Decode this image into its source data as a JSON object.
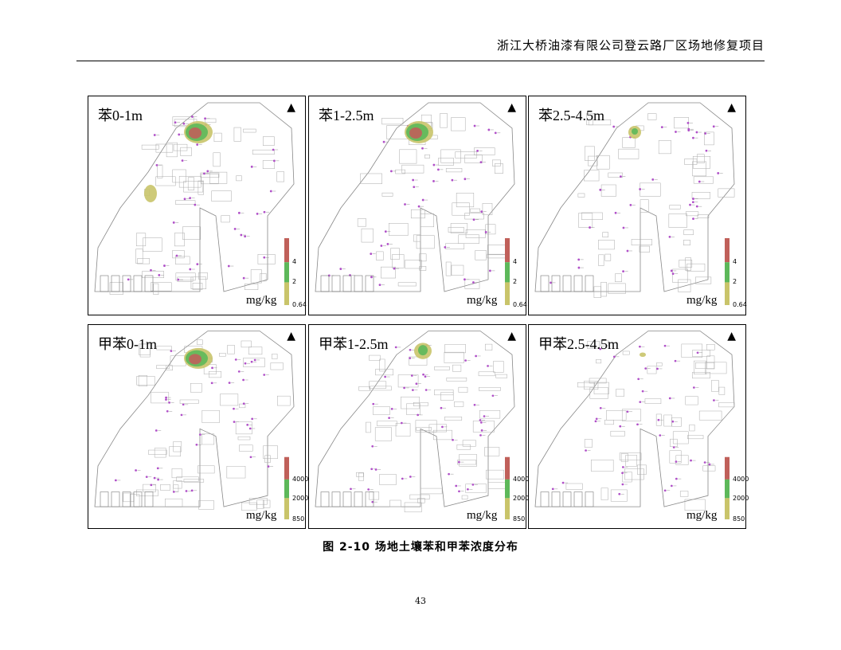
{
  "header": {
    "title": "浙江大桥油漆有限公司登云路厂区场地修复项目"
  },
  "panels": [
    {
      "label": "苯0-1m",
      "unit": "mg/kg",
      "legend_ticks": [
        "4",
        "2",
        "0.64"
      ],
      "hotspots": "large+small"
    },
    {
      "label": "苯1-2.5m",
      "unit": "mg/kg",
      "legend_ticks": [
        "4",
        "2",
        "0.64"
      ],
      "hotspots": "large"
    },
    {
      "label": "苯2.5-4.5m",
      "unit": "mg/kg",
      "legend_ticks": [
        "4",
        "2",
        "0.64"
      ],
      "hotspots": "small"
    },
    {
      "label": "甲苯0-1m",
      "unit": "mg/kg",
      "legend_ticks": [
        "4000",
        "2000",
        "850"
      ],
      "hotspots": "large"
    },
    {
      "label": "甲苯1-2.5m",
      "unit": "mg/kg",
      "legend_ticks": [
        "4000",
        "2000",
        "850"
      ],
      "hotspots": "medium"
    },
    {
      "label": "甲苯2.5-4.5m",
      "unit": "mg/kg",
      "legend_ticks": [
        "4000",
        "2000",
        "850"
      ],
      "hotspots": "tiny"
    }
  ],
  "north_symbol": "▲",
  "legend_colors": {
    "high": "#c0605a",
    "mid": "#5db85a",
    "low": "#c9c46a"
  },
  "caption": "图 2-10 场地土壤苯和甲苯浓度分布",
  "page_number": "43"
}
